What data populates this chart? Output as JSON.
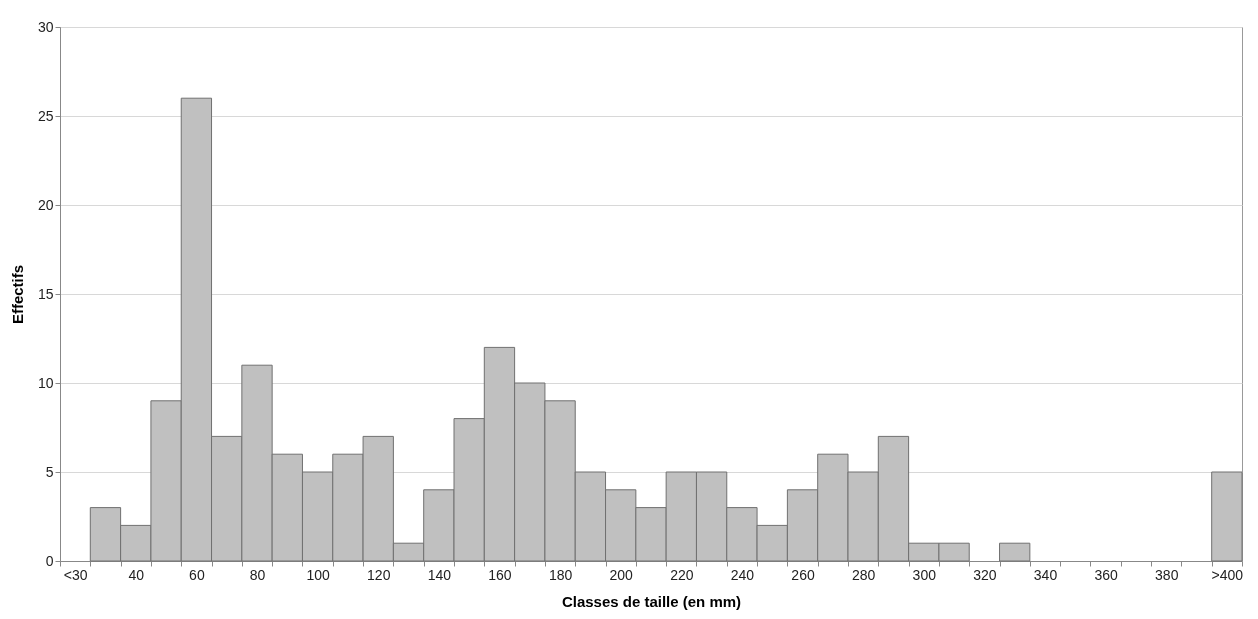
{
  "chart_data": {
    "type": "bar",
    "xlabel": "Classes de taille (en mm)",
    "ylabel": "Effectifs",
    "categories": [
      "<30",
      null,
      "40",
      null,
      "60",
      null,
      "80",
      null,
      "100",
      null,
      "120",
      null,
      "140",
      null,
      "160",
      null,
      "180",
      null,
      "200",
      null,
      "220",
      null,
      "240",
      null,
      "260",
      null,
      "280",
      null,
      "300",
      null,
      "320",
      null,
      "340",
      null,
      "360",
      null,
      "380",
      null,
      ">400"
    ],
    "values": [
      0,
      3,
      2,
      9,
      26,
      7,
      11,
      6,
      5,
      6,
      7,
      1,
      4,
      8,
      12,
      10,
      9,
      5,
      4,
      3,
      5,
      5,
      3,
      2,
      4,
      6,
      5,
      7,
      1,
      1,
      0,
      1,
      0,
      0,
      0,
      0,
      0,
      0,
      5
    ],
    "color": "#c0c0c0",
    "ylim": [
      0,
      30
    ],
    "yticks": [
      0,
      5,
      10,
      15,
      20,
      25,
      30
    ],
    "grid": "y"
  }
}
